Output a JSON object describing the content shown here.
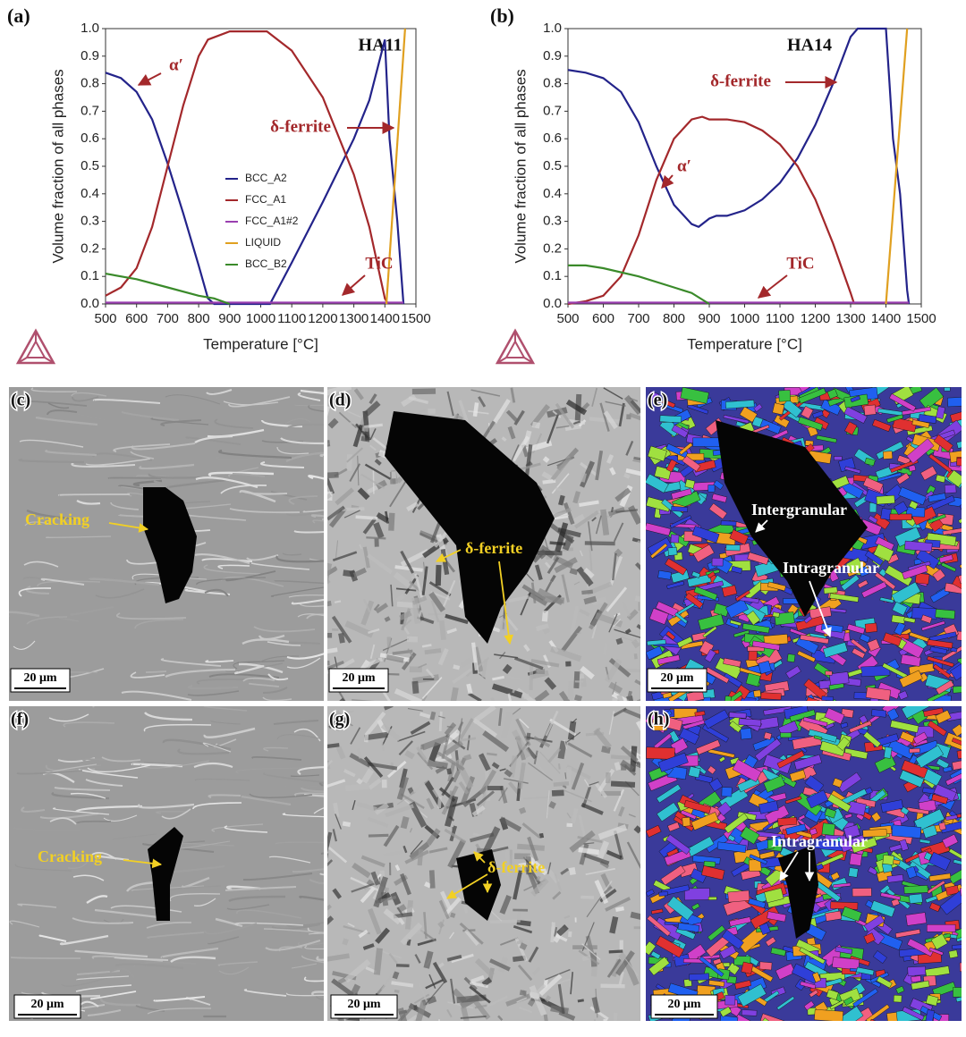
{
  "chart_data": [
    {
      "type": "line",
      "panel_label": "(a)",
      "title": "HA11",
      "x_label": "Temperature [°C]",
      "y_label": "Volume fraction of all phases",
      "xlim": [
        500,
        1500
      ],
      "xticks": [
        500,
        600,
        700,
        800,
        900,
        1000,
        1100,
        1200,
        1300,
        1400,
        1500
      ],
      "ylim": [
        0,
        1
      ],
      "yticks": [
        {
          "value": 0,
          "label": "0.0"
        },
        0.1,
        0.2,
        0.3,
        0.4,
        0.5,
        0.6,
        0.7,
        0.8,
        0.9,
        {
          "value": 1,
          "label": "1.0"
        }
      ],
      "legend": "left",
      "annotations": [
        "α′",
        "δ-ferrite",
        "TiC"
      ],
      "series": [
        {
          "name": "BCC_A2",
          "color": "#23238a",
          "x": [
            500,
            550,
            600,
            650,
            700,
            750,
            800,
            830,
            850,
            1030,
            1100,
            1200,
            1300,
            1350,
            1400,
            1415,
            1440,
            1460
          ],
          "values": [
            0.84,
            0.82,
            0.77,
            0.67,
            0.51,
            0.33,
            0.14,
            0.02,
            0.0,
            0.0,
            0.15,
            0.37,
            0.6,
            0.74,
            0.96,
            0.6,
            0.3,
            0.0
          ]
        },
        {
          "name": "FCC_A1",
          "color": "#a3282b",
          "x": [
            500,
            550,
            600,
            650,
            700,
            750,
            800,
            830,
            900,
            1020,
            1100,
            1200,
            1300,
            1350,
            1400,
            1410
          ],
          "values": [
            0.03,
            0.06,
            0.13,
            0.28,
            0.5,
            0.72,
            0.9,
            0.96,
            0.99,
            0.99,
            0.92,
            0.75,
            0.47,
            0.28,
            0.02,
            0.0
          ]
        },
        {
          "name": "FCC_A1#2",
          "color": "#9a3fb0",
          "x": [
            500,
            1460
          ],
          "values": [
            0.005,
            0.005
          ]
        },
        {
          "name": "LIQUID",
          "color": "#e0a020",
          "x": [
            1405,
            1465
          ],
          "values": [
            0.0,
            1.0
          ]
        },
        {
          "name": "BCC_B2",
          "color": "#3a8a2a",
          "x": [
            500,
            600,
            700,
            800,
            850,
            900
          ],
          "values": [
            0.11,
            0.09,
            0.06,
            0.03,
            0.02,
            0.0
          ]
        }
      ]
    },
    {
      "type": "line",
      "panel_label": "(b)",
      "title": "HA14",
      "x_label": "Temperature [°C]",
      "y_label": "Volume fraction of all phases",
      "xlim": [
        500,
        1500
      ],
      "xticks": [
        500,
        600,
        700,
        800,
        900,
        1000,
        1100,
        1200,
        1300,
        1400,
        1500
      ],
      "ylim": [
        0,
        1
      ],
      "yticks": [
        {
          "value": 0,
          "label": "0.0"
        },
        0.1,
        0.2,
        0.3,
        0.4,
        0.5,
        0.6,
        0.7,
        0.8,
        0.9,
        {
          "value": 1,
          "label": "1.0"
        }
      ],
      "annotations": [
        "δ-ferrite",
        "α′",
        "TiC"
      ],
      "series": [
        {
          "color": "#23238a",
          "x": [
            500,
            550,
            600,
            650,
            700,
            750,
            800,
            850,
            870,
            900,
            920,
            950,
            1000,
            1050,
            1100,
            1150,
            1200,
            1250,
            1300,
            1320,
            1400,
            1410,
            1420,
            1440,
            1460,
            1465
          ],
          "values": [
            0.85,
            0.84,
            0.82,
            0.77,
            0.66,
            0.5,
            0.36,
            0.29,
            0.28,
            0.31,
            0.32,
            0.32,
            0.34,
            0.38,
            0.44,
            0.53,
            0.65,
            0.8,
            0.97,
            1.0,
            1.0,
            0.8,
            0.6,
            0.4,
            0.05,
            0.0
          ]
        },
        {
          "color": "#a3282b",
          "x": [
            500,
            550,
            600,
            650,
            700,
            750,
            800,
            850,
            880,
            900,
            950,
            1000,
            1050,
            1100,
            1150,
            1200,
            1250,
            1300,
            1310
          ],
          "values": [
            0.0,
            0.01,
            0.03,
            0.1,
            0.25,
            0.45,
            0.6,
            0.67,
            0.68,
            0.67,
            0.67,
            0.66,
            0.63,
            0.58,
            0.5,
            0.38,
            0.22,
            0.04,
            0.0
          ]
        },
        {
          "color": "#9a3fb0",
          "x": [
            500,
            1465
          ],
          "values": [
            0.005,
            0.005
          ]
        },
        {
          "color": "#e0a020",
          "x": [
            1400,
            1460
          ],
          "values": [
            0.0,
            1.0
          ]
        },
        {
          "color": "#3a8a2a",
          "x": [
            500,
            550,
            600,
            700,
            800,
            850,
            900
          ],
          "values": [
            0.14,
            0.14,
            0.13,
            0.1,
            0.06,
            0.04,
            0.0
          ]
        }
      ]
    }
  ],
  "panels": [
    {
      "label": "(c)",
      "annotations": [
        "Cracking"
      ],
      "scale_bar": "20 μm"
    },
    {
      "label": "(d)",
      "annotations": [
        "δ-ferrite"
      ],
      "scale_bar": "20 μm"
    },
    {
      "label": "(e)",
      "annotations": [
        "Intergranular",
        "Intragranular"
      ],
      "scale_bar": "20 μm"
    },
    {
      "label": "(f)",
      "annotations": [
        "Cracking"
      ],
      "scale_bar": "20 μm"
    },
    {
      "label": "(g)",
      "annotations": [
        "δ-ferrite"
      ],
      "scale_bar": "20 μm"
    },
    {
      "label": "(h)",
      "annotations": [
        "Intragranular"
      ],
      "scale_bar": "20 μm"
    }
  ]
}
